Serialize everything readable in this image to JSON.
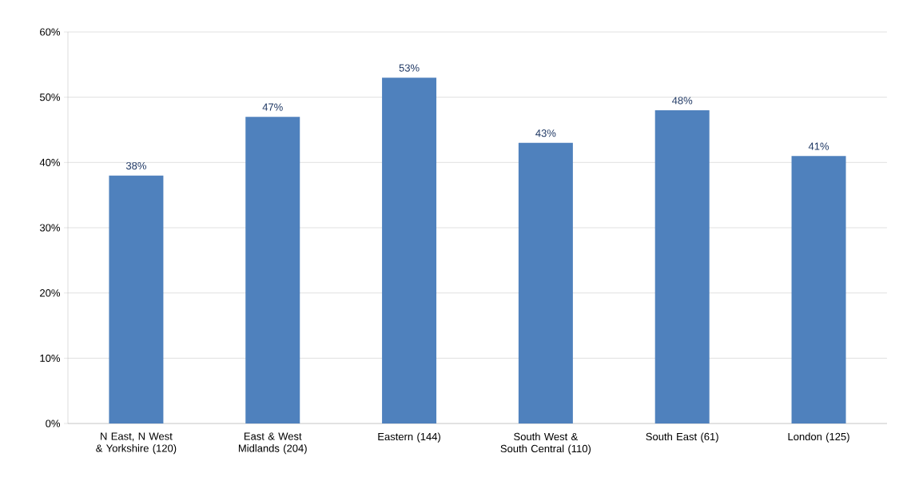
{
  "chart_data": {
    "type": "bar",
    "categories": [
      "N East, N West & Yorkshire (120)",
      "East & West Midlands (204)",
      "Eastern (144)",
      "South West & South Central (110)",
      "South East (61)",
      "London (125)"
    ],
    "values": [
      38,
      47,
      53,
      43,
      48,
      41
    ],
    "value_labels": [
      "38%",
      "47%",
      "53%",
      "43%",
      "48%",
      "41%"
    ],
    "color": "#4f81bd",
    "ylim": [
      0,
      60
    ],
    "yticks": [
      {
        "value": 0,
        "label": "0%"
      },
      {
        "value": 10,
        "label": "10%"
      },
      {
        "value": 20,
        "label": "20%"
      },
      {
        "value": 30,
        "label": "30%"
      },
      {
        "value": 40,
        "label": "40%"
      },
      {
        "value": 50,
        "label": "50%"
      },
      {
        "value": 60,
        "label": "60%"
      }
    ],
    "grid": "y"
  }
}
